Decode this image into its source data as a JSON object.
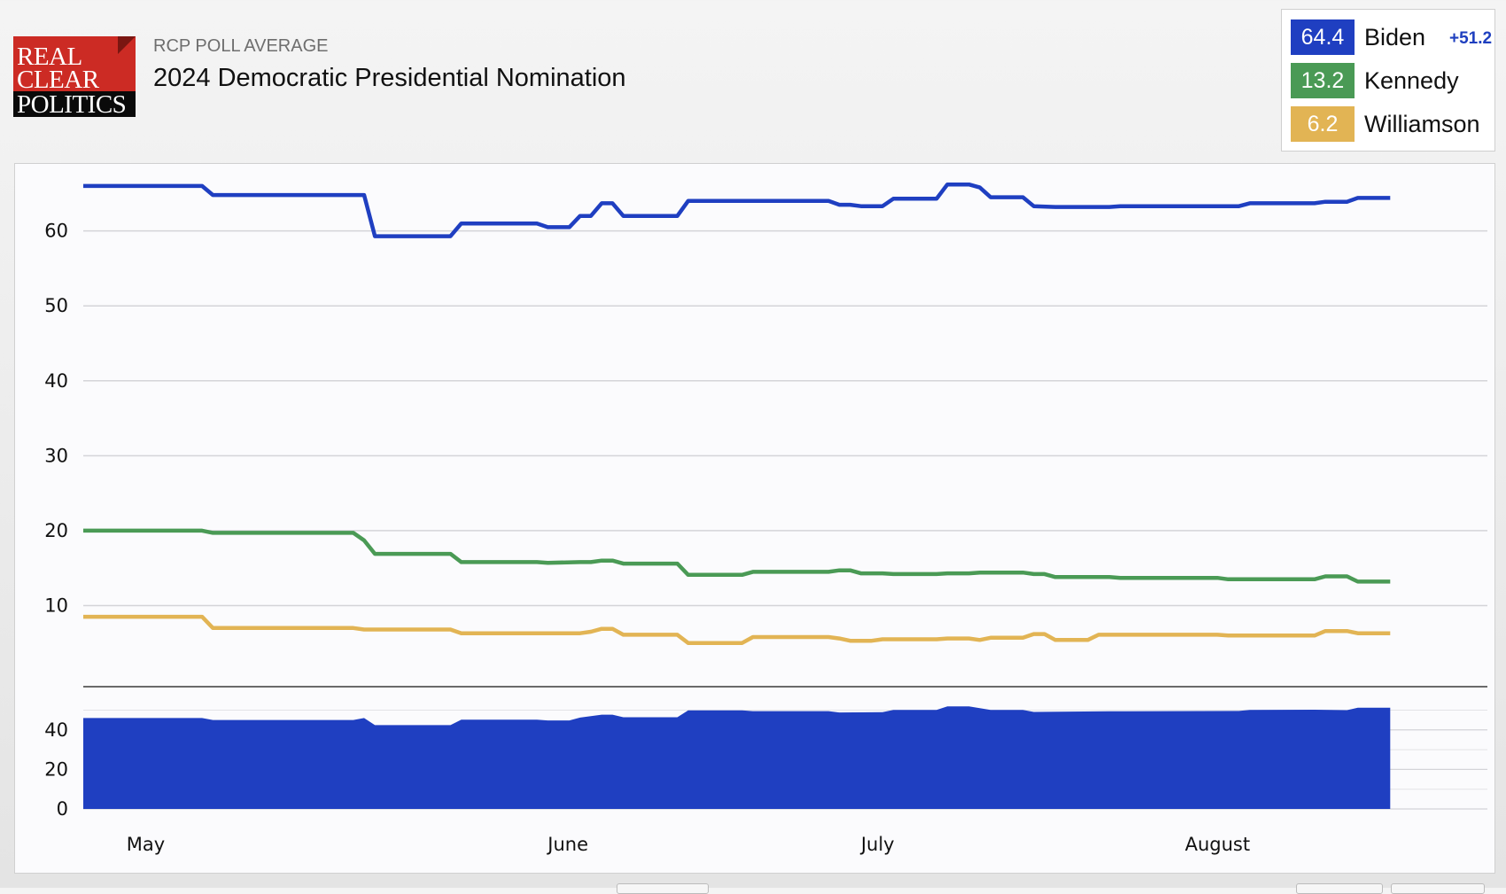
{
  "logo": {
    "line1": "REAL",
    "line2": "CLEAR",
    "line3": "POLITICS"
  },
  "header": {
    "kicker": "RCP POLL AVERAGE",
    "title": "2024 Democratic Presidential Nomination"
  },
  "legend": {
    "spread": "+51.2",
    "items": [
      {
        "value": "64.4",
        "name": "Biden",
        "color": "#1f3fc1"
      },
      {
        "value": "13.2",
        "name": "Kennedy",
        "color": "#4a9a55"
      },
      {
        "value": "6.2",
        "name": "Williamson",
        "color": "#e2b454"
      }
    ]
  },
  "chart_data": {
    "type": "line",
    "x_range": [
      "2023-04-20",
      "2023-08-28"
    ],
    "xticks": [
      {
        "label": "May",
        "date": "2023-04-24"
      },
      {
        "label": "June",
        "date": "2023-06-02"
      },
      {
        "label": "July",
        "date": "2023-07-01"
      },
      {
        "label": "August",
        "date": "2023-07-31"
      }
    ],
    "y_range": [
      0,
      68
    ],
    "yticks": [
      10,
      20,
      30,
      40,
      50,
      60
    ],
    "grid": true,
    "series": [
      {
        "name": "Biden",
        "color": "#1f3fc1",
        "points": [
          [
            "2023-04-20",
            66
          ],
          [
            "2023-05-01",
            66
          ],
          [
            "2023-05-02",
            64.8
          ],
          [
            "2023-05-16",
            64.8
          ],
          [
            "2023-05-17",
            59.3
          ],
          [
            "2023-05-24",
            59.3
          ],
          [
            "2023-05-25",
            61
          ],
          [
            "2023-06-01",
            61
          ],
          [
            "2023-06-02",
            60.5
          ],
          [
            "2023-06-04",
            60.5
          ],
          [
            "2023-06-05",
            62
          ],
          [
            "2023-06-06",
            62
          ],
          [
            "2023-06-07",
            63.7
          ],
          [
            "2023-06-08",
            63.7
          ],
          [
            "2023-06-09",
            62
          ],
          [
            "2023-06-14",
            62
          ],
          [
            "2023-06-15",
            64
          ],
          [
            "2023-06-28",
            64
          ],
          [
            "2023-06-29",
            63.5
          ],
          [
            "2023-06-30",
            63.5
          ],
          [
            "2023-07-01",
            63.3
          ],
          [
            "2023-07-03",
            63.3
          ],
          [
            "2023-07-04",
            64.3
          ],
          [
            "2023-07-08",
            64.3
          ],
          [
            "2023-07-09",
            66.2
          ],
          [
            "2023-07-11",
            66.2
          ],
          [
            "2023-07-12",
            65.8
          ],
          [
            "2023-07-13",
            64.5
          ],
          [
            "2023-07-16",
            64.5
          ],
          [
            "2023-07-17",
            63.3
          ],
          [
            "2023-07-19",
            63.2
          ],
          [
            "2023-07-24",
            63.2
          ],
          [
            "2023-07-25",
            63.3
          ],
          [
            "2023-08-05",
            63.3
          ],
          [
            "2023-08-06",
            63.7
          ],
          [
            "2023-08-12",
            63.7
          ],
          [
            "2023-08-13",
            63.9
          ],
          [
            "2023-08-15",
            63.9
          ],
          [
            "2023-08-16",
            64.4
          ],
          [
            "2023-08-19",
            64.4
          ]
        ]
      },
      {
        "name": "Kennedy",
        "color": "#4a9a55",
        "points": [
          [
            "2023-04-20",
            20
          ],
          [
            "2023-05-01",
            20
          ],
          [
            "2023-05-02",
            19.7
          ],
          [
            "2023-05-15",
            19.7
          ],
          [
            "2023-05-16",
            18.7
          ],
          [
            "2023-05-17",
            16.9
          ],
          [
            "2023-05-24",
            16.9
          ],
          [
            "2023-05-25",
            15.8
          ],
          [
            "2023-06-01",
            15.8
          ],
          [
            "2023-06-02",
            15.7
          ],
          [
            "2023-06-05",
            15.8
          ],
          [
            "2023-06-06",
            15.8
          ],
          [
            "2023-06-07",
            16
          ],
          [
            "2023-06-08",
            16
          ],
          [
            "2023-06-09",
            15.6
          ],
          [
            "2023-06-14",
            15.6
          ],
          [
            "2023-06-15",
            14.1
          ],
          [
            "2023-06-20",
            14.1
          ],
          [
            "2023-06-21",
            14.5
          ],
          [
            "2023-06-28",
            14.5
          ],
          [
            "2023-06-29",
            14.7
          ],
          [
            "2023-06-30",
            14.7
          ],
          [
            "2023-07-01",
            14.3
          ],
          [
            "2023-07-03",
            14.3
          ],
          [
            "2023-07-04",
            14.2
          ],
          [
            "2023-07-08",
            14.2
          ],
          [
            "2023-07-09",
            14.3
          ],
          [
            "2023-07-11",
            14.3
          ],
          [
            "2023-07-12",
            14.4
          ],
          [
            "2023-07-16",
            14.4
          ],
          [
            "2023-07-17",
            14.2
          ],
          [
            "2023-07-18",
            14.2
          ],
          [
            "2023-07-19",
            13.8
          ],
          [
            "2023-07-24",
            13.8
          ],
          [
            "2023-07-25",
            13.7
          ],
          [
            "2023-08-03",
            13.7
          ],
          [
            "2023-08-04",
            13.5
          ],
          [
            "2023-08-12",
            13.5
          ],
          [
            "2023-08-13",
            13.9
          ],
          [
            "2023-08-15",
            13.9
          ],
          [
            "2023-08-16",
            13.2
          ],
          [
            "2023-08-19",
            13.2
          ]
        ]
      },
      {
        "name": "Williamson",
        "color": "#e2b454",
        "points": [
          [
            "2023-04-20",
            8.5
          ],
          [
            "2023-05-01",
            8.5
          ],
          [
            "2023-05-02",
            7
          ],
          [
            "2023-05-15",
            7
          ],
          [
            "2023-05-16",
            6.8
          ],
          [
            "2023-05-24",
            6.8
          ],
          [
            "2023-05-25",
            6.3
          ],
          [
            "2023-06-05",
            6.3
          ],
          [
            "2023-06-06",
            6.5
          ],
          [
            "2023-06-07",
            6.9
          ],
          [
            "2023-06-08",
            6.9
          ],
          [
            "2023-06-09",
            6.1
          ],
          [
            "2023-06-14",
            6.1
          ],
          [
            "2023-06-15",
            5
          ],
          [
            "2023-06-20",
            5
          ],
          [
            "2023-06-21",
            5.8
          ],
          [
            "2023-06-28",
            5.8
          ],
          [
            "2023-06-29",
            5.6
          ],
          [
            "2023-06-30",
            5.3
          ],
          [
            "2023-07-02",
            5.3
          ],
          [
            "2023-07-03",
            5.5
          ],
          [
            "2023-07-08",
            5.5
          ],
          [
            "2023-07-09",
            5.6
          ],
          [
            "2023-07-11",
            5.6
          ],
          [
            "2023-07-12",
            5.4
          ],
          [
            "2023-07-13",
            5.7
          ],
          [
            "2023-07-16",
            5.7
          ],
          [
            "2023-07-17",
            6.2
          ],
          [
            "2023-07-18",
            6.2
          ],
          [
            "2023-07-19",
            5.4
          ],
          [
            "2023-07-22",
            5.4
          ],
          [
            "2023-07-23",
            6.1
          ],
          [
            "2023-08-03",
            6.1
          ],
          [
            "2023-08-04",
            6
          ],
          [
            "2023-08-12",
            6
          ],
          [
            "2023-08-13",
            6.6
          ],
          [
            "2023-08-15",
            6.6
          ],
          [
            "2023-08-16",
            6.3
          ],
          [
            "2023-08-19",
            6.3
          ]
        ]
      }
    ],
    "spread_chart": {
      "type": "area",
      "y_range": [
        0,
        52
      ],
      "yticks": [
        0,
        20,
        40
      ],
      "color": "#1f3fc1",
      "points": [
        [
          "2023-04-20",
          46
        ],
        [
          "2023-05-01",
          46
        ],
        [
          "2023-05-02",
          45
        ],
        [
          "2023-05-15",
          45
        ],
        [
          "2023-05-16",
          46
        ],
        [
          "2023-05-17",
          42.4
        ],
        [
          "2023-05-24",
          42.4
        ],
        [
          "2023-05-25",
          45.2
        ],
        [
          "2023-06-01",
          45.2
        ],
        [
          "2023-06-02",
          44.8
        ],
        [
          "2023-06-04",
          44.8
        ],
        [
          "2023-06-05",
          46.2
        ],
        [
          "2023-06-07",
          47.7
        ],
        [
          "2023-06-08",
          47.7
        ],
        [
          "2023-06-09",
          46.4
        ],
        [
          "2023-06-14",
          46.4
        ],
        [
          "2023-06-15",
          49.9
        ],
        [
          "2023-06-20",
          49.9
        ],
        [
          "2023-06-21",
          49.5
        ],
        [
          "2023-06-28",
          49.5
        ],
        [
          "2023-06-29",
          48.8
        ],
        [
          "2023-07-03",
          49
        ],
        [
          "2023-07-04",
          50.1
        ],
        [
          "2023-07-08",
          50.1
        ],
        [
          "2023-07-09",
          51.9
        ],
        [
          "2023-07-11",
          51.9
        ],
        [
          "2023-07-13",
          50.1
        ],
        [
          "2023-07-16",
          50.1
        ],
        [
          "2023-07-17",
          49.1
        ],
        [
          "2023-07-24",
          49.4
        ],
        [
          "2023-08-05",
          49.6
        ],
        [
          "2023-08-06",
          50.1
        ],
        [
          "2023-08-12",
          50.2
        ],
        [
          "2023-08-15",
          50
        ],
        [
          "2023-08-16",
          51.2
        ],
        [
          "2023-08-19",
          51.2
        ]
      ]
    }
  }
}
